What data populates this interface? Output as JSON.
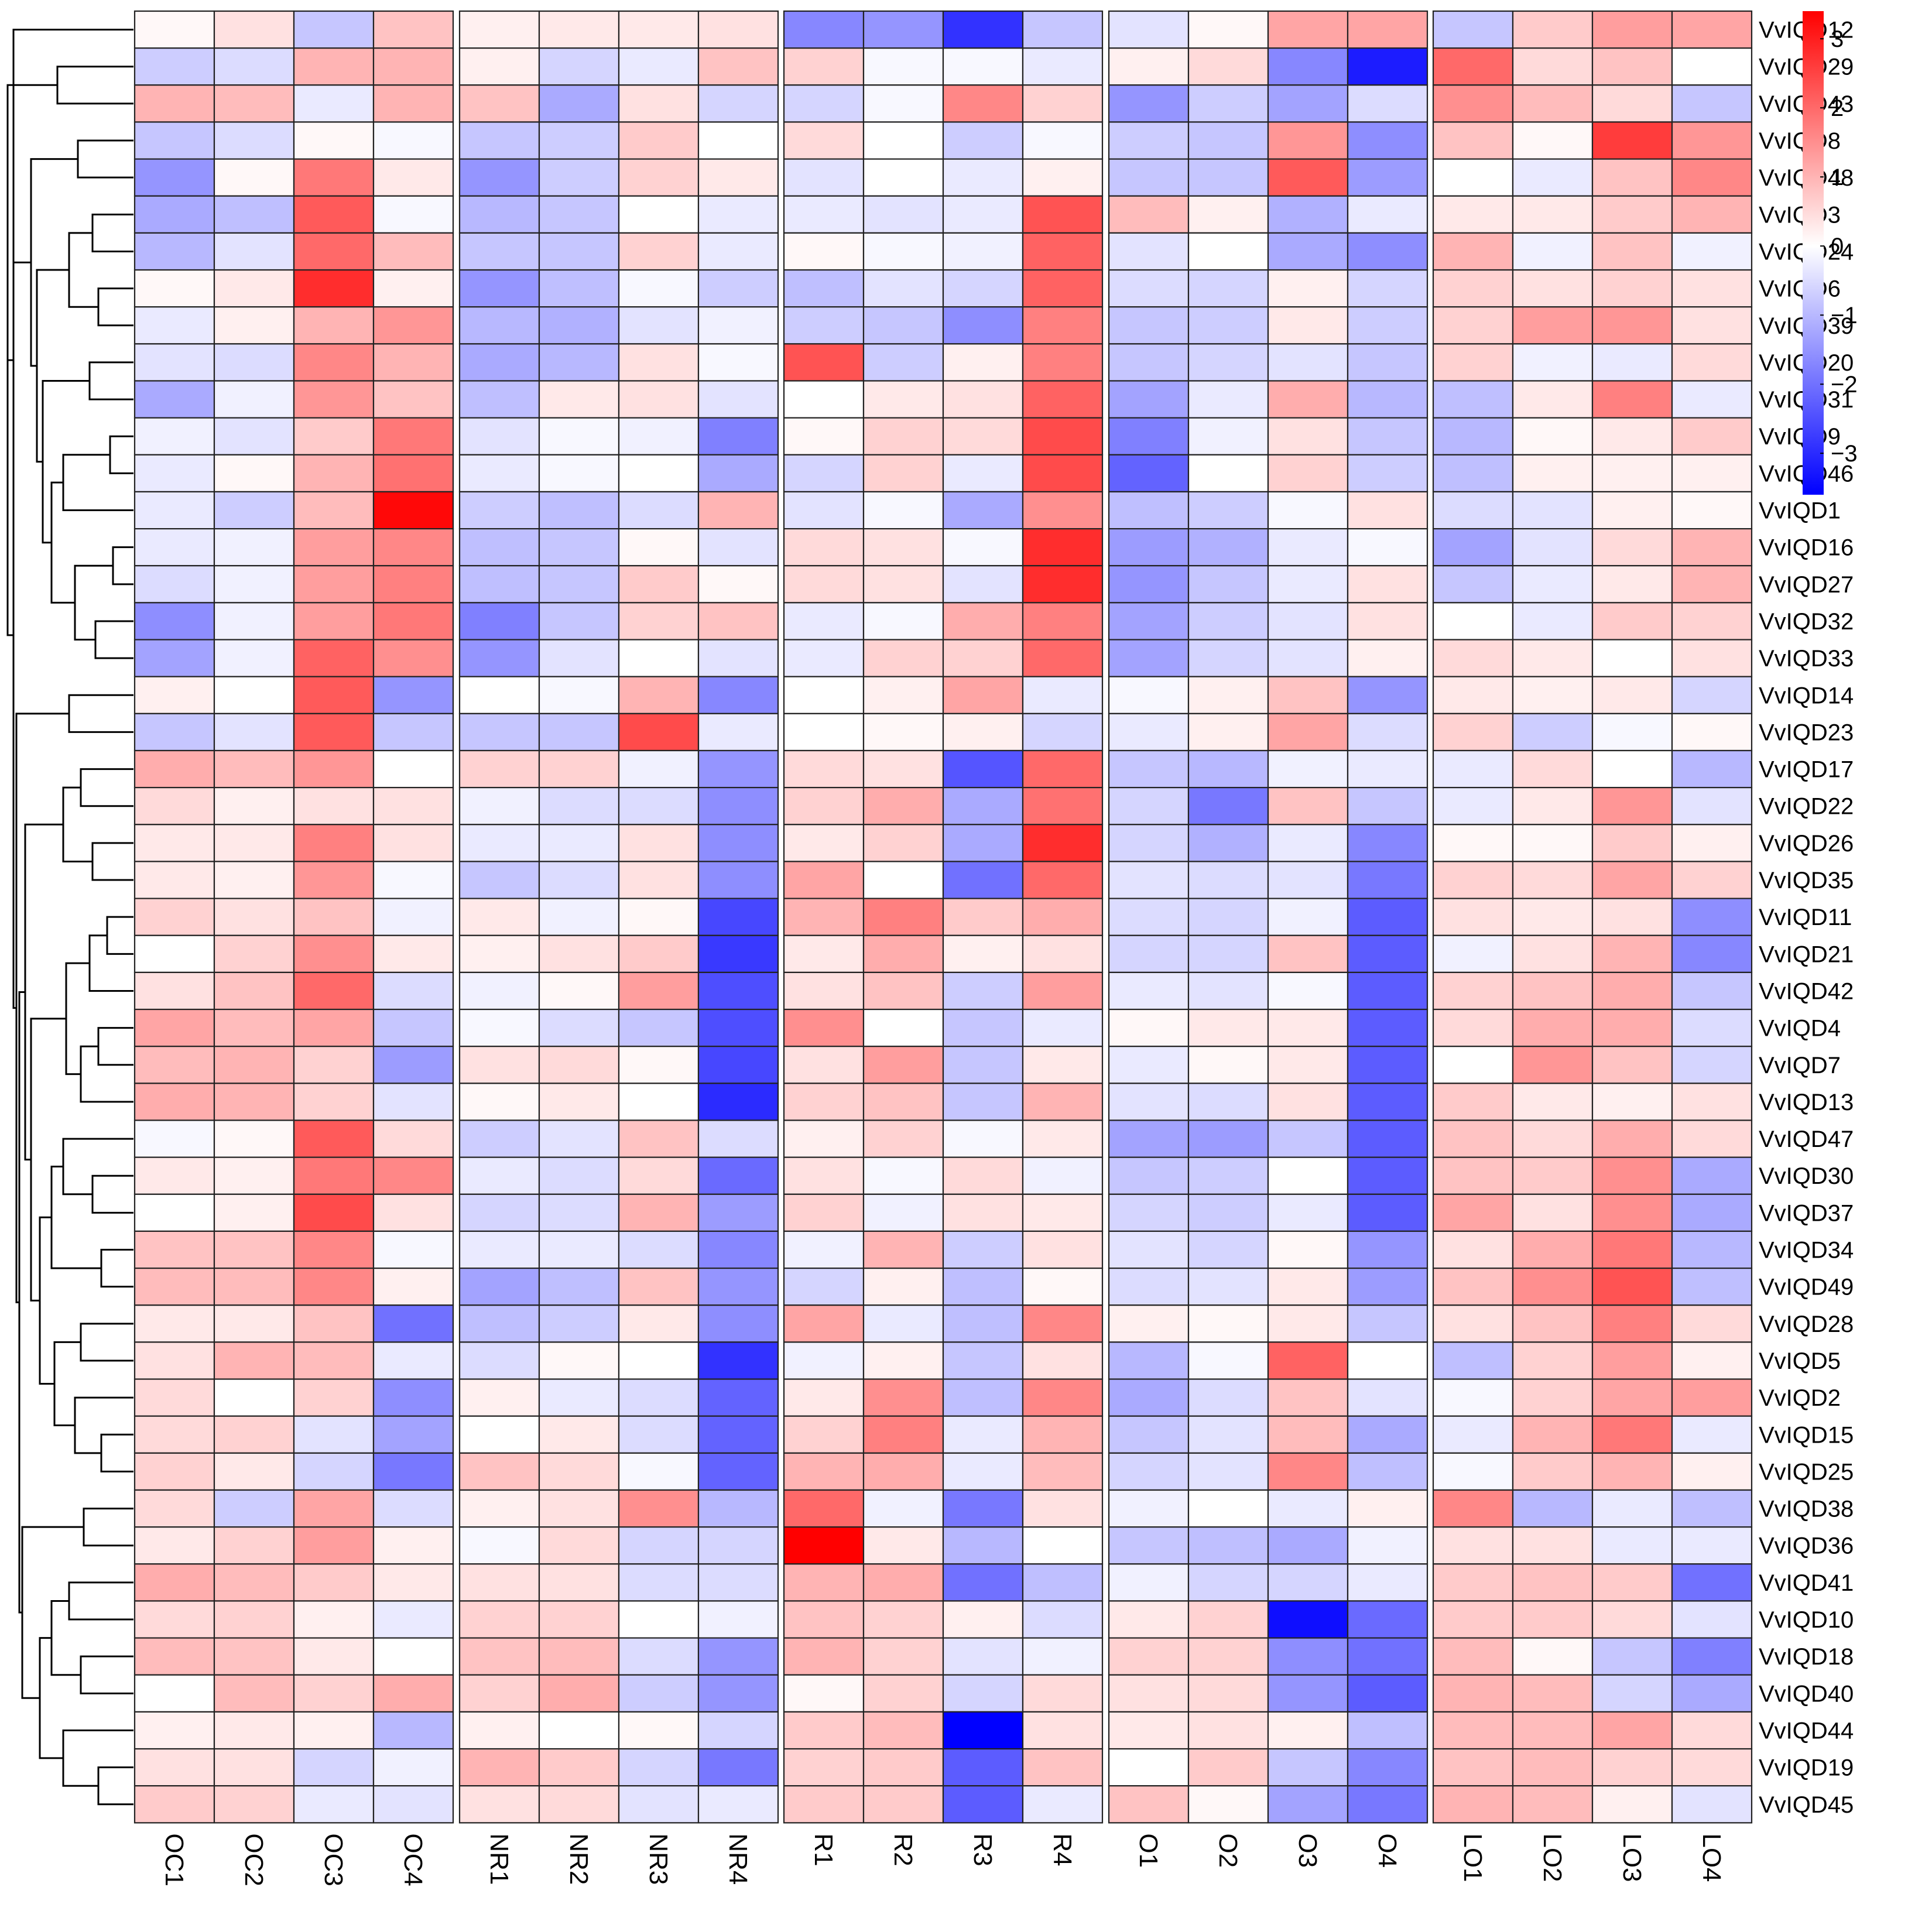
{
  "chart_data": {
    "type": "heatmap",
    "title": "",
    "xlabel": "",
    "ylabel": "",
    "groups": [
      {
        "name": "OC",
        "columns": [
          "OC1",
          "OC2",
          "OC3",
          "OC4"
        ]
      },
      {
        "name": "NR",
        "columns": [
          "NR1",
          "NR2",
          "NR3",
          "NR4"
        ]
      },
      {
        "name": "R",
        "columns": [
          "R1",
          "R2",
          "R3",
          "R4"
        ]
      },
      {
        "name": "O",
        "columns": [
          "O1",
          "O2",
          "O3",
          "O4"
        ]
      },
      {
        "name": "LO",
        "columns": [
          "LO1",
          "LO2",
          "LO3",
          "LO4"
        ]
      }
    ],
    "rows": [
      "VvIQD12",
      "VvIQD29",
      "VvIQD43",
      "VvIQD8",
      "VvIQD48",
      "VvIQD3",
      "VvIQD24",
      "VvIQD6",
      "VvIQD39",
      "VvIQD20",
      "VvIQD31",
      "VvIQD9",
      "VvIQD46",
      "VvIQD1",
      "VvIQD16",
      "VvIQD27",
      "VvIQD32",
      "VvIQD33",
      "VvIQD14",
      "VvIQD23",
      "VvIQD17",
      "VvIQD22",
      "VvIQD26",
      "VvIQD35",
      "VvIQD11",
      "VvIQD21",
      "VvIQD42",
      "VvIQD4",
      "VvIQD7",
      "VvIQD13",
      "VvIQD47",
      "VvIQD30",
      "VvIQD37",
      "VvIQD34",
      "VvIQD49",
      "VvIQD28",
      "VvIQD5",
      "VvIQD2",
      "VvIQD15",
      "VvIQD25",
      "VvIQD38",
      "VvIQD36",
      "VvIQD41",
      "VvIQD10",
      "VvIQD18",
      "VvIQD40",
      "VvIQD44",
      "VvIQD19",
      "VvIQD45"
    ],
    "values": [
      [
        0.1,
        0.4,
        -0.8,
        0.8,
        0.2,
        0.3,
        0.3,
        0.4,
        -1.7,
        -1.5,
        -2.9,
        -0.8,
        -0.4,
        0.1,
        1.2,
        1.2,
        -0.8,
        0.7,
        1.3,
        1.2
      ],
      [
        -0.7,
        -0.5,
        1.0,
        1.0,
        0.2,
        -0.6,
        -0.3,
        0.8,
        0.6,
        -0.1,
        -0.1,
        -0.3,
        0.2,
        0.5,
        -1.7,
        -3.2,
        2.0,
        0.5,
        0.8,
        0.0
      ],
      [
        1.0,
        0.9,
        -0.3,
        1.0,
        0.8,
        -1.2,
        0.4,
        -0.6,
        -0.6,
        -0.1,
        1.6,
        0.6,
        -1.5,
        -0.7,
        -1.3,
        -0.5,
        1.5,
        0.9,
        0.5,
        -0.8
      ],
      [
        -0.8,
        -0.5,
        0.1,
        -0.1,
        -0.8,
        -0.7,
        0.7,
        0.0,
        0.5,
        0.0,
        -0.7,
        -0.1,
        -0.7,
        -0.8,
        1.4,
        -1.6,
        0.8,
        0.1,
        2.6,
        1.4
      ],
      [
        -1.5,
        0.1,
        1.8,
        0.3,
        -1.5,
        -0.7,
        0.6,
        0.3,
        -0.4,
        0.0,
        -0.3,
        0.2,
        -0.8,
        -0.8,
        2.2,
        -1.4,
        0.0,
        -0.3,
        0.8,
        1.6
      ],
      [
        -1.2,
        -0.9,
        2.2,
        -0.1,
        -1.0,
        -0.8,
        0.0,
        -0.3,
        -0.3,
        -0.4,
        -0.3,
        2.3,
        0.9,
        0.2,
        -1.1,
        -0.3,
        0.3,
        0.3,
        0.7,
        1.0
      ],
      [
        -1.0,
        -0.4,
        2.0,
        0.9,
        -0.8,
        -0.8,
        0.6,
        -0.3,
        0.1,
        -0.1,
        -0.2,
        2.1,
        -0.4,
        0.0,
        -1.2,
        -1.6,
        1.0,
        -0.2,
        0.8,
        -0.2
      ],
      [
        0.1,
        0.3,
        2.8,
        0.2,
        -1.5,
        -0.9,
        -0.1,
        -0.7,
        -0.9,
        -0.4,
        -0.6,
        2.1,
        -0.5,
        -0.6,
        0.2,
        -0.6,
        0.6,
        0.4,
        0.6,
        0.4
      ],
      [
        -0.3,
        0.2,
        1.0,
        1.4,
        -1.0,
        -1.1,
        -0.4,
        -0.2,
        -0.7,
        -0.8,
        -1.6,
        1.7,
        -0.8,
        -0.7,
        0.3,
        -0.7,
        0.6,
        1.3,
        1.4,
        0.4
      ],
      [
        -0.4,
        -0.5,
        1.6,
        1.0,
        -1.2,
        -1.0,
        0.4,
        -0.1,
        2.3,
        -0.7,
        0.2,
        1.7,
        -0.8,
        -0.6,
        -0.4,
        -0.8,
        0.6,
        -0.2,
        -0.3,
        0.5
      ],
      [
        -1.2,
        -0.2,
        1.4,
        0.8,
        -0.9,
        0.3,
        0.4,
        -0.4,
        0.0,
        0.3,
        0.4,
        2.1,
        -1.3,
        -0.3,
        1.1,
        -1.0,
        -0.9,
        0.3,
        1.7,
        -0.3
      ],
      [
        -0.2,
        -0.4,
        0.7,
        1.8,
        -0.4,
        -0.1,
        -0.2,
        -1.8,
        0.1,
        0.6,
        0.5,
        2.4,
        -1.8,
        -0.2,
        0.4,
        -0.8,
        -1.0,
        0.1,
        0.3,
        0.7
      ],
      [
        -0.3,
        0.1,
        1.0,
        1.9,
        -0.3,
        -0.1,
        0.0,
        -1.2,
        -0.6,
        0.6,
        -0.3,
        2.4,
        -2.2,
        0.0,
        0.6,
        -0.7,
        -0.9,
        0.2,
        0.2,
        0.2
      ],
      [
        -0.3,
        -0.7,
        0.9,
        3.3,
        -0.7,
        -0.9,
        -0.5,
        1.0,
        -0.4,
        -0.1,
        -1.2,
        1.5,
        -0.9,
        -0.7,
        -0.1,
        0.4,
        -0.5,
        -0.4,
        0.2,
        0.1
      ],
      [
        -0.3,
        -0.2,
        1.3,
        1.6,
        -0.9,
        -0.8,
        0.1,
        -0.4,
        0.5,
        0.4,
        -0.1,
        2.8,
        -1.4,
        -1.1,
        -0.3,
        -0.1,
        -1.3,
        -0.4,
        0.5,
        1.0
      ],
      [
        -0.5,
        -0.2,
        1.3,
        1.7,
        -0.9,
        -0.8,
        0.7,
        0.1,
        0.5,
        0.4,
        -0.4,
        2.8,
        -1.5,
        -0.8,
        -0.3,
        0.4,
        -0.8,
        -0.3,
        0.3,
        1.0
      ],
      [
        -1.6,
        -0.2,
        1.3,
        1.8,
        -1.8,
        -0.8,
        0.6,
        0.8,
        -0.3,
        -0.1,
        1.1,
        1.7,
        -1.3,
        -0.7,
        -0.4,
        0.4,
        0.0,
        -0.3,
        0.7,
        0.6
      ],
      [
        -1.3,
        -0.2,
        2.1,
        1.5,
        -1.5,
        -0.4,
        0.0,
        -0.4,
        -0.3,
        0.6,
        0.6,
        2.0,
        -1.3,
        -0.6,
        -0.4,
        0.2,
        0.5,
        0.3,
        0.0,
        0.4
      ],
      [
        0.2,
        0.0,
        2.2,
        -1.5,
        0.0,
        -0.1,
        1.0,
        -1.7,
        0.0,
        0.2,
        1.2,
        -0.3,
        -0.1,
        0.2,
        0.8,
        -1.5,
        0.3,
        0.2,
        0.3,
        -0.6
      ],
      [
        -0.8,
        -0.4,
        2.2,
        -0.8,
        -0.8,
        -0.8,
        2.4,
        -0.3,
        0.0,
        0.1,
        0.2,
        -0.6,
        -0.3,
        0.2,
        1.2,
        -0.5,
        0.6,
        -0.7,
        -0.1,
        0.1
      ],
      [
        1.1,
        0.9,
        1.4,
        0.0,
        0.6,
        0.6,
        -0.2,
        -1.5,
        0.5,
        0.4,
        -2.4,
        2.0,
        -0.8,
        -1.0,
        -0.2,
        -0.3,
        -0.3,
        0.5,
        0.0,
        -1.0
      ],
      [
        0.5,
        0.2,
        0.4,
        0.4,
        -0.2,
        -0.5,
        -0.5,
        -1.6,
        0.6,
        1.1,
        -1.2,
        1.9,
        -0.6,
        -1.9,
        0.8,
        -0.8,
        -0.3,
        0.3,
        1.4,
        -0.4
      ],
      [
        0.3,
        0.3,
        1.7,
        0.4,
        -0.3,
        -0.3,
        0.4,
        -1.6,
        0.3,
        0.6,
        -1.2,
        2.8,
        -0.6,
        -1.1,
        -0.3,
        -1.7,
        0.1,
        0.1,
        0.7,
        0.2
      ],
      [
        0.3,
        0.2,
        1.4,
        -0.1,
        -0.8,
        -0.5,
        0.4,
        -1.6,
        1.2,
        0.0,
        -2.0,
        2.0,
        -0.4,
        -0.5,
        -0.4,
        -1.9,
        0.6,
        0.5,
        1.2,
        0.6
      ],
      [
        0.6,
        0.4,
        0.8,
        -0.2,
        0.3,
        -0.2,
        0.1,
        -2.6,
        1.0,
        1.7,
        0.7,
        1.1,
        -0.5,
        -0.6,
        -0.2,
        -2.3,
        0.4,
        0.3,
        0.4,
        -1.6
      ],
      [
        0.0,
        0.6,
        1.5,
        0.3,
        0.2,
        0.4,
        0.7,
        -2.8,
        0.3,
        1.1,
        0.2,
        0.4,
        -0.6,
        -0.6,
        0.8,
        -2.3,
        -0.2,
        0.4,
        1.0,
        -1.7
      ],
      [
        0.4,
        0.8,
        2.0,
        -0.5,
        -0.2,
        0.1,
        1.3,
        -2.5,
        0.4,
        0.8,
        -0.7,
        1.3,
        -0.3,
        -0.4,
        -0.1,
        -2.3,
        0.6,
        0.8,
        1.1,
        -0.8
      ],
      [
        1.2,
        0.9,
        1.2,
        -0.8,
        -0.1,
        -0.5,
        -0.8,
        -2.5,
        1.5,
        0.0,
        -0.8,
        -0.3,
        0.1,
        0.3,
        0.3,
        -2.3,
        0.5,
        1.1,
        1.1,
        -0.5
      ],
      [
        0.9,
        1.0,
        0.6,
        -1.4,
        0.4,
        0.5,
        0.1,
        -2.6,
        0.4,
        1.3,
        -0.8,
        0.3,
        -0.3,
        0.1,
        0.3,
        -2.3,
        0.0,
        1.4,
        0.8,
        -0.6
      ],
      [
        1.1,
        1.0,
        0.6,
        -0.4,
        0.1,
        0.3,
        0.0,
        -3.0,
        0.6,
        0.8,
        -0.8,
        1.0,
        -0.4,
        -0.5,
        0.4,
        -2.3,
        0.7,
        0.3,
        0.2,
        0.4
      ],
      [
        -0.1,
        0.1,
        2.2,
        0.5,
        -0.7,
        -0.4,
        0.8,
        -0.5,
        0.2,
        0.6,
        -0.1,
        0.3,
        -1.3,
        -1.4,
        -0.8,
        -2.3,
        0.8,
        0.5,
        1.1,
        0.5
      ],
      [
        0.3,
        0.2,
        1.8,
        1.6,
        -0.3,
        -0.5,
        0.5,
        -2.1,
        0.4,
        -0.1,
        0.5,
        -0.2,
        -0.8,
        -0.7,
        0.0,
        -2.3,
        0.8,
        0.7,
        1.5,
        -1.2
      ],
      [
        0.0,
        0.2,
        2.4,
        0.4,
        -0.6,
        -0.5,
        1.0,
        -1.4,
        0.6,
        -0.2,
        0.4,
        0.3,
        -0.6,
        -0.7,
        -0.3,
        -2.3,
        1.2,
        0.4,
        1.5,
        -1.2
      ],
      [
        0.8,
        0.8,
        1.6,
        -0.1,
        -0.3,
        -0.3,
        -0.5,
        -1.7,
        -0.2,
        1.0,
        -0.7,
        0.4,
        -0.4,
        -0.6,
        0.1,
        -1.5,
        0.4,
        1.1,
        1.8,
        -1.0
      ],
      [
        0.9,
        0.9,
        1.6,
        0.2,
        -1.3,
        -0.9,
        0.8,
        -1.5,
        -0.6,
        0.2,
        -0.9,
        0.1,
        -0.5,
        -0.4,
        0.3,
        -1.4,
        0.8,
        1.5,
        2.3,
        -0.9
      ],
      [
        0.3,
        0.3,
        0.8,
        -2.0,
        -0.9,
        -0.7,
        0.3,
        -1.6,
        1.2,
        -0.3,
        -0.9,
        1.6,
        0.2,
        0.1,
        0.3,
        -0.8,
        0.4,
        0.8,
        1.7,
        0.5
      ],
      [
        0.4,
        1.0,
        0.9,
        -0.3,
        -0.5,
        0.1,
        0.0,
        -2.9,
        -0.2,
        0.2,
        -0.8,
        0.4,
        -1.0,
        -0.1,
        2.1,
        0.0,
        -0.9,
        0.6,
        1.3,
        0.2
      ],
      [
        0.5,
        0.0,
        0.6,
        -1.6,
        0.2,
        -0.3,
        -0.5,
        -2.2,
        0.3,
        1.5,
        -0.9,
        1.6,
        -1.2,
        -0.5,
        0.8,
        -0.4,
        -0.1,
        0.6,
        1.2,
        1.3
      ],
      [
        0.5,
        0.6,
        -0.4,
        -1.3,
        0.0,
        0.3,
        -0.5,
        -2.2,
        0.6,
        1.7,
        -0.3,
        1.0,
        -0.8,
        -0.4,
        0.9,
        -1.2,
        -0.3,
        1.0,
        1.8,
        -0.3
      ],
      [
        0.6,
        0.3,
        -0.6,
        -1.9,
        0.8,
        0.5,
        -0.1,
        -2.2,
        1.0,
        1.1,
        -0.3,
        0.9,
        -0.6,
        -0.4,
        1.6,
        -0.9,
        -0.1,
        0.7,
        1.0,
        0.2
      ],
      [
        0.5,
        -0.7,
        1.2,
        -0.5,
        0.2,
        0.4,
        1.5,
        -1.0,
        2.0,
        -0.2,
        -1.9,
        0.4,
        -0.2,
        0.0,
        -0.3,
        0.2,
        1.6,
        -1.0,
        -0.3,
        -0.9
      ],
      [
        0.3,
        0.6,
        1.3,
        0.2,
        -0.1,
        0.5,
        -0.6,
        -0.6,
        3.4,
        0.3,
        -1.0,
        0.0,
        -0.8,
        -0.9,
        -1.2,
        -0.2,
        0.4,
        0.4,
        -0.3,
        -0.3
      ],
      [
        1.1,
        0.9,
        0.7,
        0.3,
        0.4,
        0.4,
        -0.5,
        -0.5,
        1.0,
        1.1,
        -2.0,
        -0.9,
        -0.2,
        -0.6,
        -0.6,
        -0.3,
        0.7,
        0.8,
        0.7,
        -2.0
      ],
      [
        0.5,
        0.6,
        0.2,
        -0.3,
        0.6,
        0.6,
        0.0,
        -0.2,
        0.8,
        0.6,
        0.2,
        -0.5,
        0.3,
        0.6,
        -3.4,
        -2.1,
        0.7,
        0.7,
        0.5,
        -0.4
      ],
      [
        0.9,
        0.8,
        0.3,
        0.0,
        0.8,
        0.9,
        -0.5,
        -1.5,
        1.0,
        0.6,
        -0.4,
        -0.2,
        0.6,
        0.6,
        -1.6,
        -2.0,
        0.9,
        0.1,
        -0.8,
        -1.8
      ],
      [
        0.0,
        0.9,
        0.6,
        1.1,
        0.6,
        1.1,
        -0.7,
        -1.5,
        0.1,
        0.6,
        -0.6,
        0.5,
        0.4,
        0.5,
        -1.5,
        -2.3,
        1.0,
        0.9,
        -0.6,
        -1.2
      ],
      [
        0.2,
        0.3,
        0.2,
        -1.0,
        0.2,
        0.0,
        0.1,
        -0.6,
        0.7,
        0.9,
        -3.6,
        0.4,
        0.3,
        0.4,
        0.2,
        -0.9,
        0.9,
        0.9,
        1.2,
        0.5
      ],
      [
        0.4,
        0.4,
        -0.6,
        -0.2,
        1.0,
        0.7,
        -0.6,
        -1.9,
        0.6,
        0.7,
        -2.3,
        0.8,
        0.0,
        0.7,
        -0.8,
        -1.7,
        0.8,
        0.9,
        0.6,
        0.5
      ],
      [
        0.7,
        0.6,
        -0.3,
        -0.4,
        0.4,
        0.5,
        -0.4,
        -0.3,
        0.7,
        0.7,
        -2.3,
        -0.3,
        0.8,
        0.1,
        -1.3,
        -1.9,
        1.0,
        0.9,
        0.2,
        -0.4
      ]
    ],
    "color_scale": {
      "min": -3.6,
      "max": 3.4,
      "stops": [
        {
          "value": -3.6,
          "color": "#0000ff"
        },
        {
          "value": 0,
          "color": "#ffffff"
        },
        {
          "value": 3.4,
          "color": "#ff0000"
        }
      ],
      "ticks": [
        3,
        2,
        1,
        0,
        -1,
        -2,
        -3
      ],
      "tick_labels": [
        "3",
        "2",
        "1",
        "0",
        "−1",
        "−2",
        "−3"
      ]
    },
    "dendrogram": "row",
    "legend": "top-right"
  }
}
